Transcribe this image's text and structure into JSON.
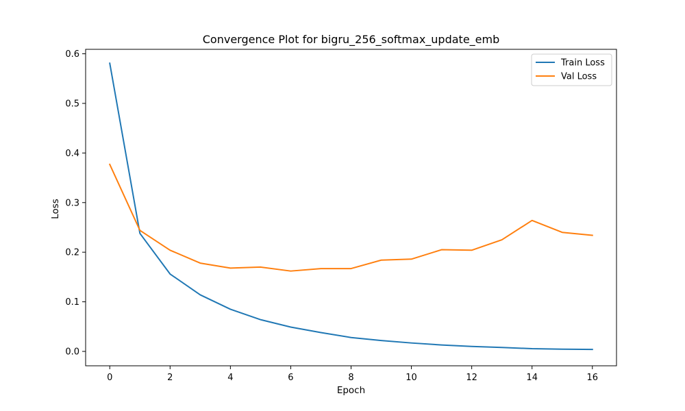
{
  "chart_data": {
    "type": "line",
    "title": "Convergence Plot for bigru_256_softmax_update_emb",
    "xlabel": "Epoch",
    "ylabel": "Loss",
    "x": [
      0,
      1,
      2,
      3,
      4,
      5,
      6,
      7,
      8,
      9,
      10,
      11,
      12,
      13,
      14,
      15,
      16
    ],
    "xlim": [
      -0.8,
      16.8
    ],
    "ylim": [
      -0.029,
      0.609
    ],
    "xticks": [
      0,
      2,
      4,
      6,
      8,
      10,
      12,
      14,
      16
    ],
    "yticks": [
      0.0,
      0.1,
      0.2,
      0.3,
      0.4,
      0.5,
      0.6
    ],
    "ytick_labels": [
      "0.0",
      "0.1",
      "0.2",
      "0.3",
      "0.4",
      "0.5",
      "0.6"
    ],
    "grid": false,
    "legend_position": "top-right",
    "series": [
      {
        "name": "Train Loss",
        "color": "#1f77b4",
        "values": [
          0.581,
          0.238,
          0.156,
          0.114,
          0.085,
          0.064,
          0.049,
          0.038,
          0.028,
          0.022,
          0.017,
          0.013,
          0.01,
          0.008,
          0.0055,
          0.0045,
          0.004
        ]
      },
      {
        "name": "Val Loss",
        "color": "#ff7f0e",
        "values": [
          0.377,
          0.244,
          0.204,
          0.178,
          0.168,
          0.17,
          0.162,
          0.167,
          0.167,
          0.184,
          0.186,
          0.205,
          0.204,
          0.225,
          0.264,
          0.24,
          0.234
        ]
      }
    ]
  }
}
